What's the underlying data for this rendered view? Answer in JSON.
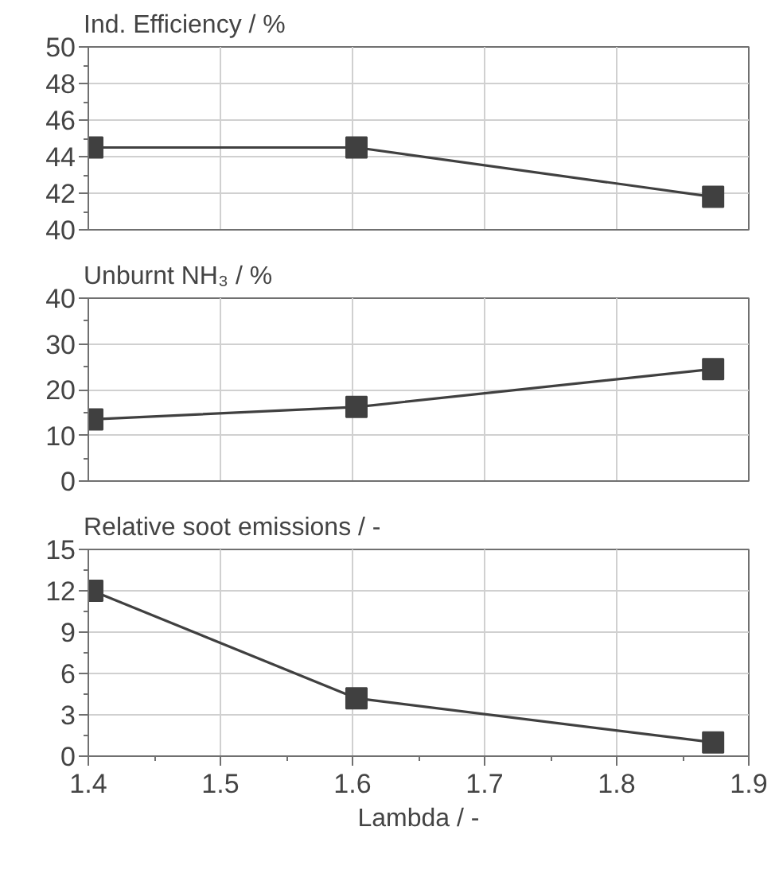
{
  "chart_data": [
    {
      "type": "line",
      "title": "Ind. Efficiency / %",
      "x": [
        1.403,
        1.603,
        1.873
      ],
      "values": [
        44.5,
        44.5,
        41.8
      ],
      "color": "#404040",
      "marker": "square",
      "line_style": "solid",
      "xlim": [
        1.4,
        1.9
      ],
      "xticks": [
        1.4,
        1.5,
        1.6,
        1.7,
        1.8,
        1.9
      ],
      "ylim": [
        40,
        50
      ],
      "yticks": [
        40,
        42,
        44,
        46,
        48,
        50
      ],
      "grid": true,
      "tick_labels": "y"
    },
    {
      "type": "line",
      "title": "Unburnt NH₃ / %",
      "x": [
        1.403,
        1.603,
        1.873
      ],
      "values": [
        13.5,
        16.2,
        24.5
      ],
      "color": "#404040",
      "marker": "square",
      "line_style": "solid",
      "xlim": [
        1.4,
        1.9
      ],
      "xticks": [
        1.4,
        1.5,
        1.6,
        1.7,
        1.8,
        1.9
      ],
      "ylim": [
        0,
        40
      ],
      "yticks": [
        0,
        10,
        20,
        30,
        40
      ],
      "grid": true,
      "tick_labels": "y"
    },
    {
      "type": "line",
      "title": "Relative soot emissions / -",
      "xlabel": "Lambda / -",
      "x": [
        1.403,
        1.603,
        1.873
      ],
      "values": [
        12.0,
        4.2,
        1.0
      ],
      "color": "#404040",
      "marker": "square",
      "line_style": "solid",
      "xlim": [
        1.4,
        1.9
      ],
      "xticks": [
        1.4,
        1.5,
        1.6,
        1.7,
        1.8,
        1.9
      ],
      "ylim": [
        0,
        15
      ],
      "yticks": [
        0,
        3,
        6,
        9,
        12,
        15
      ],
      "grid": true
    }
  ]
}
